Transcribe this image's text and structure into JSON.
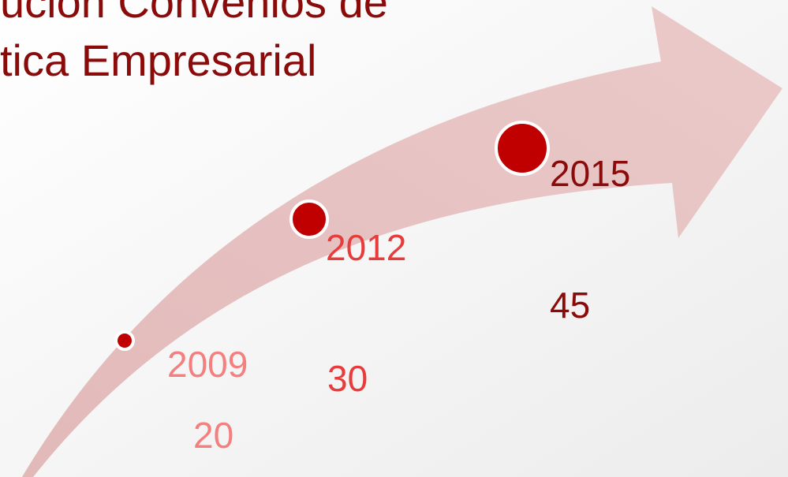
{
  "title": [
    "ución Convenios de",
    "tica Empresarial"
  ],
  "milestones": [
    {
      "year": 2009,
      "value": 20
    },
    {
      "year": 2012,
      "value": 30
    },
    {
      "year": 2015,
      "value": 45
    }
  ]
}
